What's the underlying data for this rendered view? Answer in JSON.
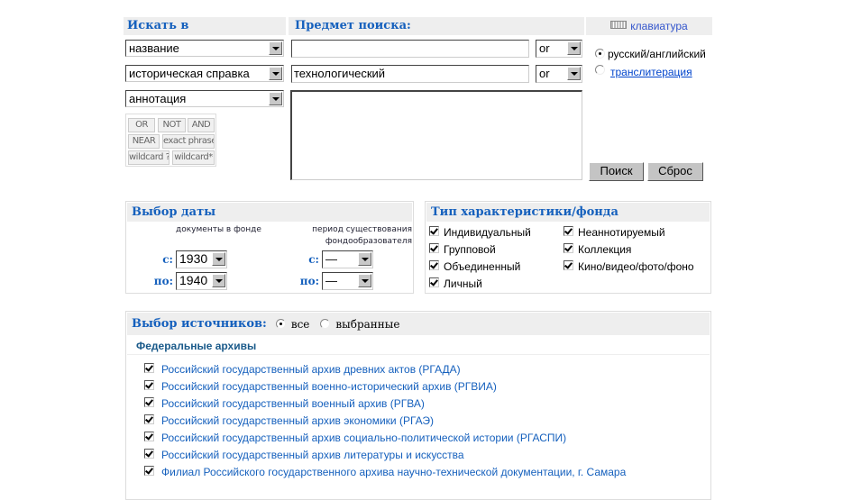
{
  "search": {
    "header_field": "Искать в",
    "header_subject": "Предмет поиска:",
    "keyboard_label": "клавиатура",
    "fields": [
      "название",
      "историческая справка",
      "аннотация"
    ],
    "terms": [
      "",
      "технологический"
    ],
    "operators": [
      "or",
      "or"
    ],
    "textarea": "",
    "op_buttons": [
      "OR",
      "NOT",
      "AND",
      "NEAR",
      "exact phrase",
      "wildcard ?",
      "wildcard*"
    ],
    "lang_options": [
      "русский/английский",
      "транслитерация"
    ],
    "lang_selected": 0,
    "search_button": "Поиск",
    "reset_button": "Сброс"
  },
  "dates": {
    "title": "Выбор даты",
    "col1": "документы в фонде",
    "col2_line1": "период существования",
    "col2_line2": "фондообразователя",
    "from_label": "с:",
    "to_label": "по:",
    "doc_from": "1930",
    "doc_to": "1940",
    "period_from": "—",
    "period_to": "—"
  },
  "types": {
    "title": "Тип характеристики/фонда",
    "items": [
      {
        "label": "Индивидуальный",
        "checked": true
      },
      {
        "label": "Групповой",
        "checked": true
      },
      {
        "label": "Объединенный",
        "checked": true
      },
      {
        "label": "Личный",
        "checked": true
      },
      {
        "label": "Неаннотируемый",
        "checked": true
      },
      {
        "label": "Коллекция",
        "checked": true
      },
      {
        "label": "Кино/видео/фото/фоно",
        "checked": true
      }
    ]
  },
  "sources": {
    "title": "Выбор источников:",
    "opt_all": "все",
    "opt_selected": "выбранные",
    "selected": "all",
    "group": "Федеральные архивы",
    "items": [
      "Российский государственный архив древних актов (РГАДА)",
      "Российский государственный военно-исторический архив (РГВИА)",
      "Российский государственный военный архив (РГВА)",
      "Российский государственный архив экономики (РГАЭ)",
      "Российский государственный архив социально-политической истории (РГАСПИ)",
      "Российский государственный архив литературы и искусства",
      "Филиал Российского государственного архива научно-технической документации, г. Самара"
    ]
  },
  "colors": {
    "accent": "#1560bd",
    "header_bg": "#eeeeee"
  }
}
